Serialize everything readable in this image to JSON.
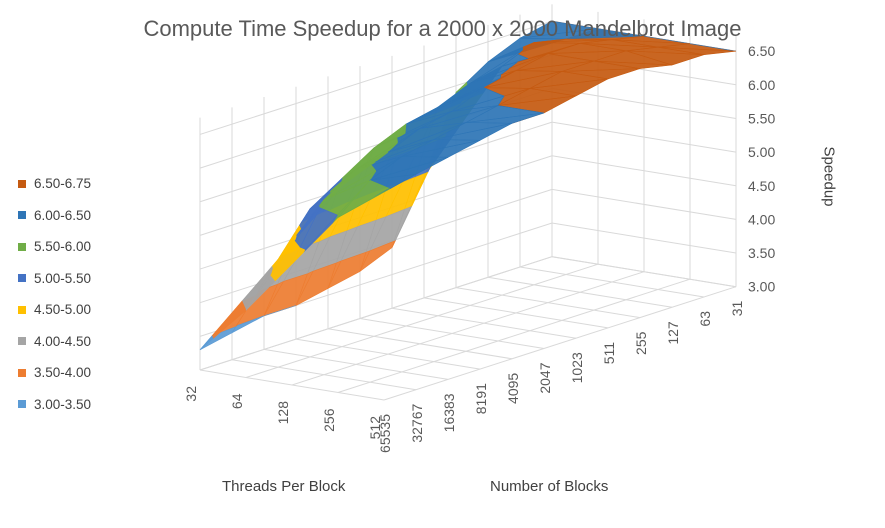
{
  "chart_data": {
    "type": "surface",
    "title": "Compute Time Speedup for a 2000 x 2000 Mandelbrot Image",
    "xlabel": "Threads Per Block",
    "ylabel": "Number of Blocks",
    "zlabel": "Speedup",
    "threads_per_block": [
      "32",
      "64",
      "128",
      "256",
      "512"
    ],
    "number_of_blocks": [
      "65535",
      "32767",
      "16383",
      "8191",
      "4095",
      "2047",
      "1023",
      "511",
      "255",
      "127",
      "63",
      "31"
    ],
    "z_ticks": [
      "3.00",
      "3.50",
      "4.00",
      "4.50",
      "5.00",
      "5.50",
      "6.00",
      "6.50"
    ],
    "zlim": [
      3.0,
      6.75
    ],
    "grid": true,
    "legend_position": "left",
    "bands": [
      {
        "label": "6.50-6.75",
        "color": "#c55a11"
      },
      {
        "label": "6.00-6.50",
        "color": "#2e75b6"
      },
      {
        "label": "5.50-6.00",
        "color": "#70ad47"
      },
      {
        "label": "5.00-5.50",
        "color": "#4472c4"
      },
      {
        "label": "4.50-5.00",
        "color": "#ffc000"
      },
      {
        "label": "4.00-4.50",
        "color": "#a5a5a5"
      },
      {
        "label": "3.50-4.00",
        "color": "#ed7d31"
      },
      {
        "label": "3.00-3.50",
        "color": "#5b9bd5"
      }
    ],
    "values": [
      [
        3.3,
        3.4,
        3.5,
        3.5,
        3.6,
        3.7,
        3.9,
        4.8,
        5.9,
        6.2,
        6.4,
        6.5
      ],
      [
        4.0,
        4.6,
        5.2,
        5.5,
        5.8,
        6.0,
        6.1,
        6.3,
        6.4,
        6.6,
        6.5,
        6.5
      ],
      [
        4.8,
        5.6,
        5.9,
        6.0,
        6.2,
        6.3,
        6.5,
        6.6,
        6.7,
        6.7,
        6.6,
        6.5
      ],
      [
        5.6,
        6.0,
        6.2,
        6.3,
        6.4,
        6.5,
        6.6,
        6.7,
        6.7,
        6.7,
        6.6,
        6.5
      ],
      [
        6.1,
        6.2,
        6.3,
        6.4,
        6.5,
        6.5,
        6.6,
        6.7,
        6.7,
        6.6,
        6.6,
        6.5
      ]
    ]
  }
}
